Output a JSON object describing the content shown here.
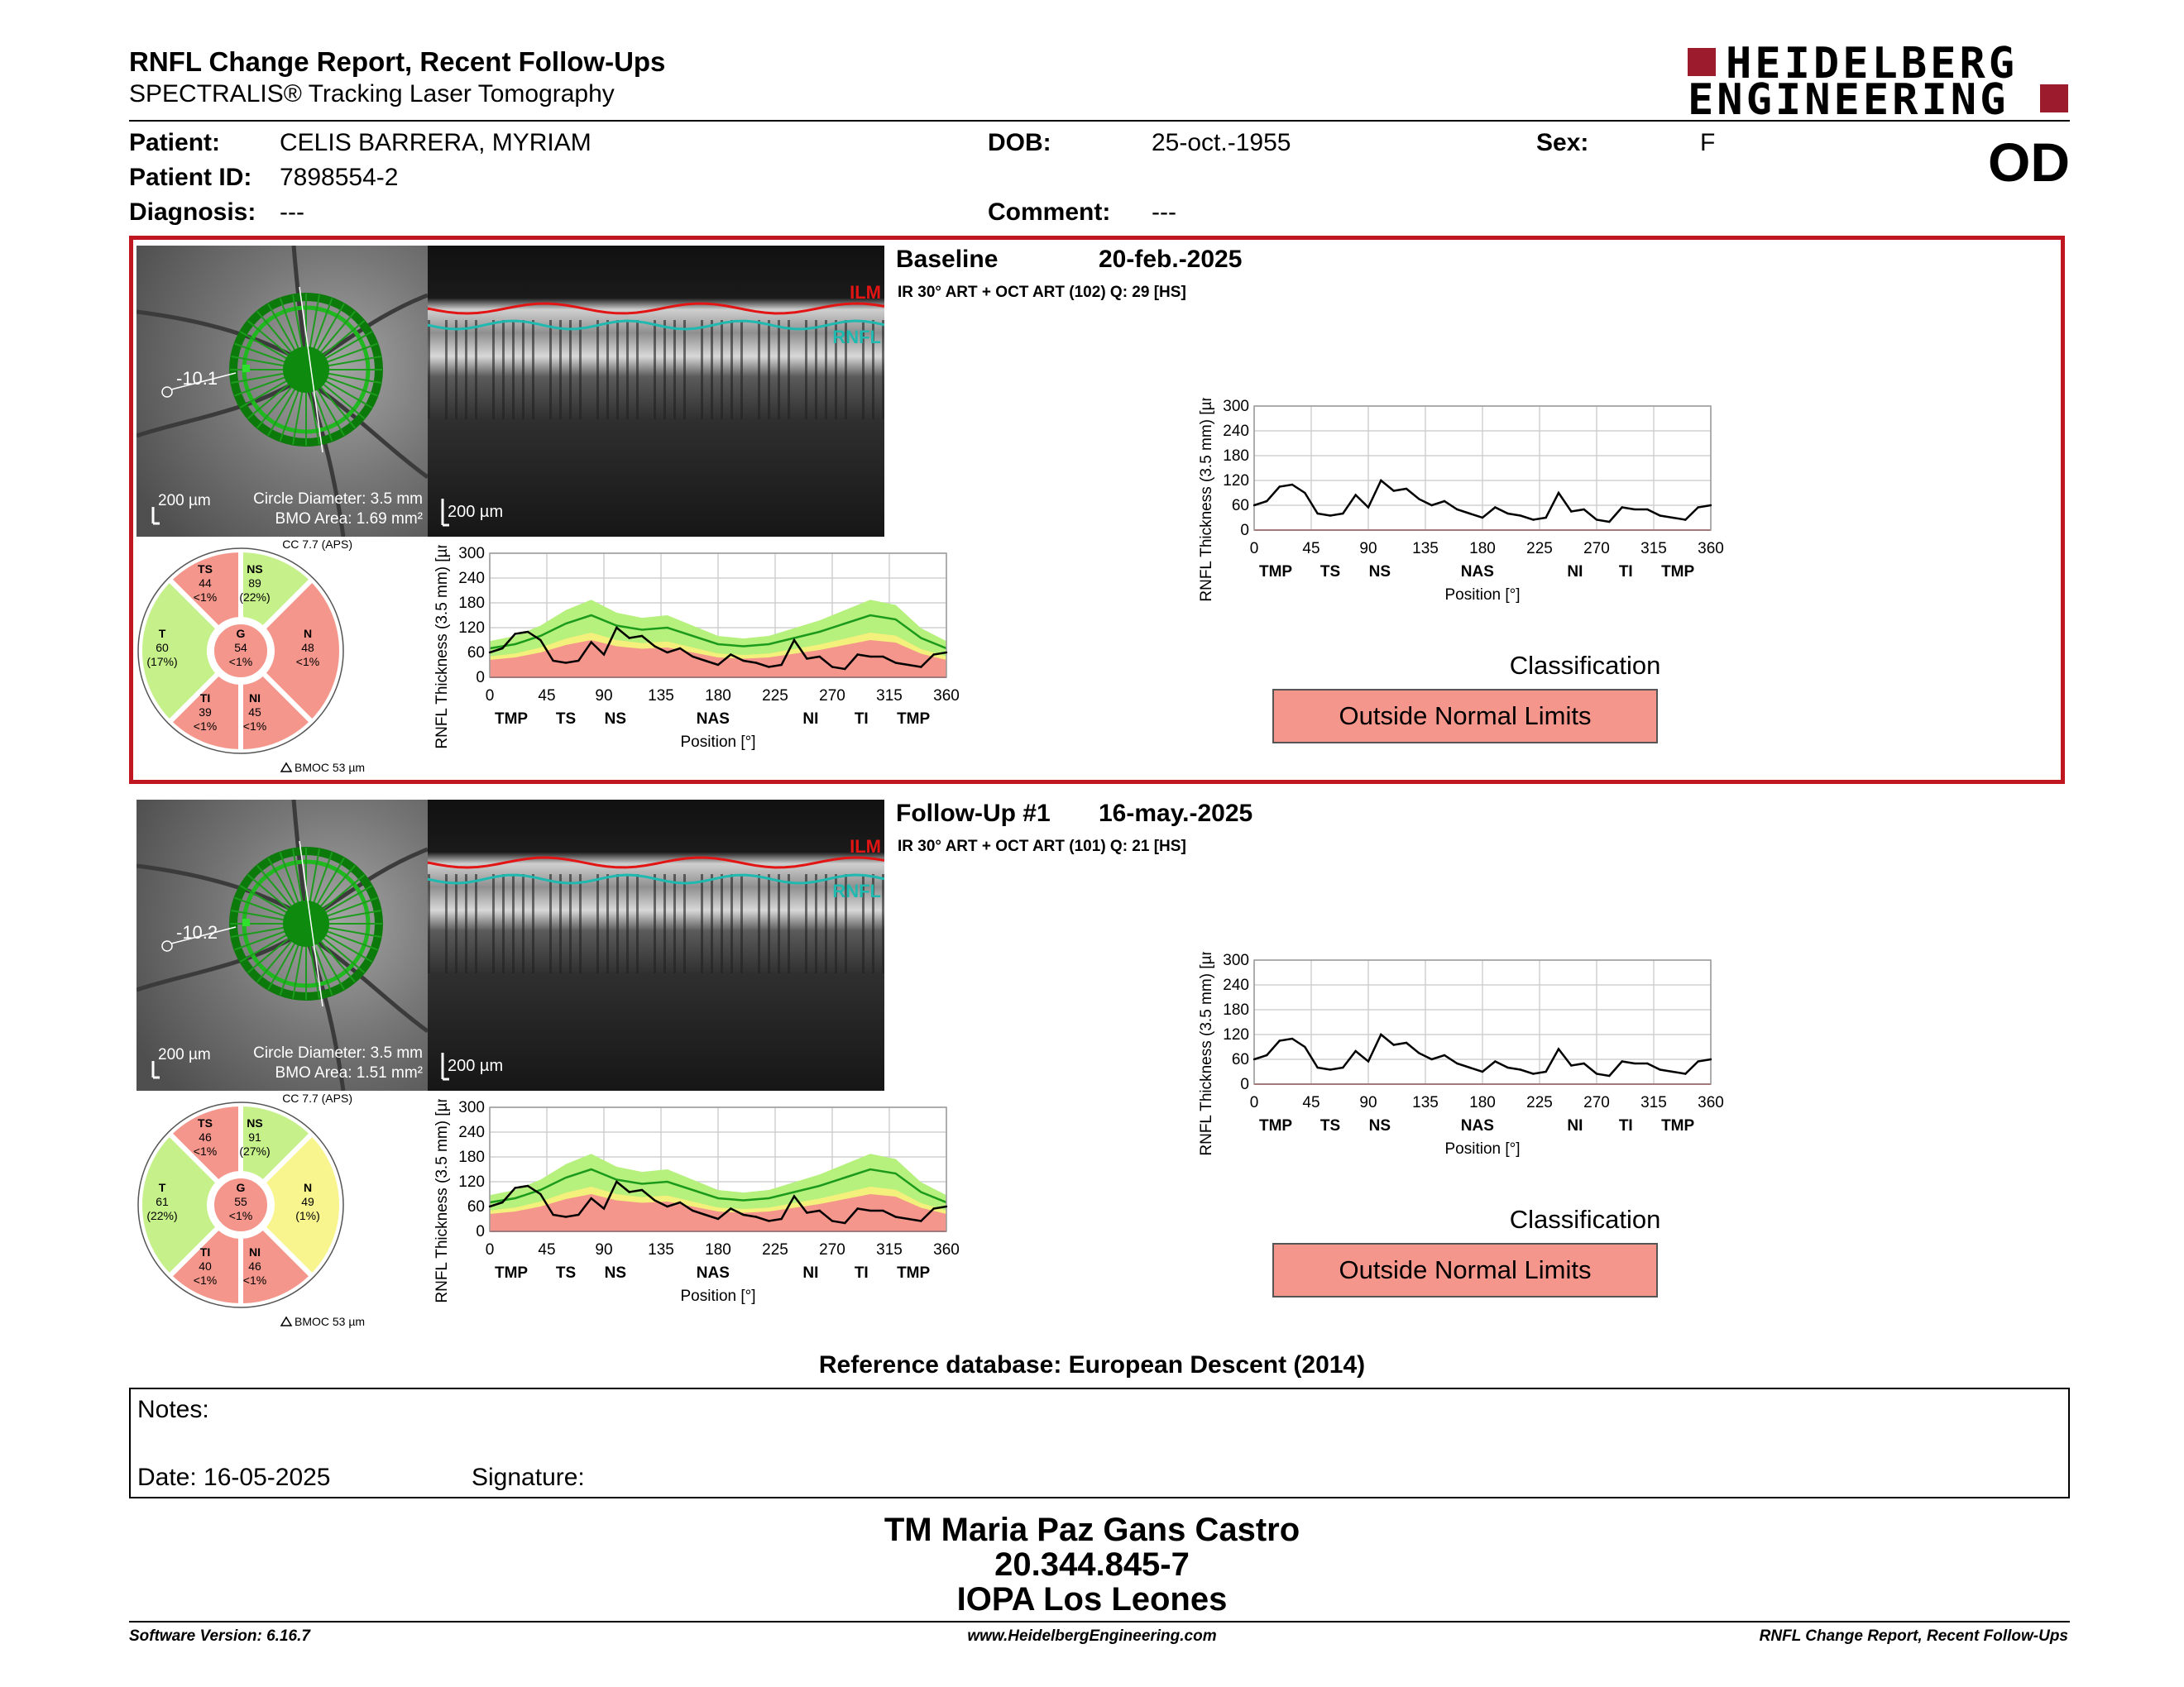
{
  "header": {
    "title": "RNFL Change Report, Recent Follow-Ups",
    "subtitle": "SPECTRALIS® Tracking Laser Tomography",
    "logo_line1": "HEIDELBERG",
    "logo_line2": "ENGINEERING"
  },
  "patient": {
    "patient_label": "Patient:",
    "patient_value": "CELIS BARRERA, MYRIAM",
    "id_label": "Patient ID:",
    "id_value": "7898554-2",
    "diagnosis_label": "Diagnosis:",
    "diagnosis_value": "---",
    "dob_label": "DOB:",
    "dob_value": "25-oct.-1955",
    "comment_label": "Comment:",
    "comment_value": "---",
    "sex_label": "Sex:",
    "sex_value": "F",
    "eye": "OD"
  },
  "exams": [
    {
      "heading": "Baseline",
      "date": "20-feb.-2025",
      "info": "IR 30° ART + OCT ART (102) Q: 29 [HS]",
      "fundus_value": "-10.1",
      "scale_fundus": "200 µm",
      "circle_diameter": "Circle Diameter: 3.5 mm",
      "bmo_area": "BMO Area: 1.69 mm²",
      "scale_bscan": "200 µm",
      "ilm": "ILM",
      "rnfl": "RNFL",
      "cc": "CC 7.7 (APS)",
      "bmo_note": "BMOC 53 µm",
      "sectors": {
        "TS": {
          "name": "TS",
          "value": "44",
          "pct": "<1%"
        },
        "NS": {
          "name": "NS",
          "value": "89",
          "pct": "(22%)"
        },
        "T": {
          "name": "T",
          "value": "60",
          "pct": "(17%)"
        },
        "G": {
          "name": "G",
          "value": "54",
          "pct": "<1%"
        },
        "N": {
          "name": "N",
          "value": "48",
          "pct": "<1%"
        },
        "TI": {
          "name": "TI",
          "value": "39",
          "pct": "<1%"
        },
        "NI": {
          "name": "NI",
          "value": "45",
          "pct": "<1%"
        }
      },
      "sector_colors": {
        "TS": "#f4968b",
        "NS": "#c6f08a",
        "T": "#c6f08a",
        "G": "#f4968b",
        "N": "#f4968b",
        "TI": "#f4968b",
        "NI": "#f4968b"
      },
      "classification_label": "Classification",
      "classification": "Outside Normal Limits"
    },
    {
      "heading": "Follow-Up #1",
      "date": "16-may.-2025",
      "info": "IR 30° ART + OCT ART (101) Q: 21 [HS]",
      "fundus_value": "-10.2",
      "scale_fundus": "200 µm",
      "circle_diameter": "Circle Diameter: 3.5 mm",
      "bmo_area": "BMO Area: 1.51 mm²",
      "scale_bscan": "200 µm",
      "ilm": "ILM",
      "rnfl": "RNFL",
      "cc": "CC 7.7 (APS)",
      "bmo_note": "BMOC 53 µm",
      "sectors": {
        "TS": {
          "name": "TS",
          "value": "46",
          "pct": "<1%"
        },
        "NS": {
          "name": "NS",
          "value": "91",
          "pct": "(27%)"
        },
        "T": {
          "name": "T",
          "value": "61",
          "pct": "(22%)"
        },
        "G": {
          "name": "G",
          "value": "55",
          "pct": "<1%"
        },
        "N": {
          "name": "N",
          "value": "49",
          "pct": "(1%)"
        },
        "TI": {
          "name": "TI",
          "value": "40",
          "pct": "<1%"
        },
        "NI": {
          "name": "NI",
          "value": "46",
          "pct": "<1%"
        }
      },
      "sector_colors": {
        "TS": "#f4968b",
        "NS": "#c6f08a",
        "T": "#c6f08a",
        "G": "#f4968b",
        "N": "#f8f58e",
        "TI": "#f4968b",
        "NI": "#f4968b"
      },
      "classification_label": "Classification",
      "classification": "Outside Normal Limits"
    }
  ],
  "chart_data": [
    {
      "type": "line",
      "title": "",
      "xlabel": "Position [°]",
      "ylabel": "RNFL Thickness (3.5 mm) [µm]",
      "xlim": [
        0,
        360
      ],
      "ylim": [
        0,
        300
      ],
      "xticks": [
        0,
        45,
        90,
        135,
        180,
        225,
        270,
        315,
        360
      ],
      "yticks": [
        0,
        60,
        120,
        180,
        240,
        300
      ],
      "sector_labels": [
        "TMP",
        "TS",
        "NS",
        "NAS",
        "NI",
        "TI",
        "TMP"
      ],
      "sector_positions": [
        17,
        60,
        99,
        176,
        253,
        293,
        334
      ],
      "series": [
        {
          "x": [
            0,
            10,
            20,
            30,
            40,
            50,
            60,
            70,
            80,
            90,
            100,
            110,
            120,
            130,
            140,
            150,
            160,
            170,
            180,
            190,
            200,
            210,
            220,
            230,
            240,
            250,
            260,
            270,
            280,
            290,
            300,
            310,
            320,
            330,
            340,
            350,
            360
          ],
          "values": [
            60,
            70,
            105,
            110,
            90,
            40,
            35,
            40,
            85,
            55,
            120,
            95,
            100,
            75,
            60,
            70,
            50,
            40,
            30,
            55,
            40,
            35,
            25,
            30,
            90,
            45,
            50,
            25,
            20,
            55,
            50,
            50,
            35,
            30,
            25,
            55,
            60
          ]
        }
      ]
    },
    {
      "type": "line",
      "title": "",
      "xlabel": "Position [°]",
      "ylabel": "RNFL Thickness (3.5 mm) [µm]",
      "xlim": [
        0,
        360
      ],
      "ylim": [
        0,
        300
      ],
      "xticks": [
        0,
        45,
        90,
        135,
        180,
        225,
        270,
        315,
        360
      ],
      "yticks": [
        0,
        60,
        120,
        180,
        240,
        300
      ],
      "sector_labels": [
        "TMP",
        "TS",
        "NS",
        "NAS",
        "NI",
        "TI",
        "TMP"
      ],
      "sector_positions": [
        17,
        60,
        99,
        176,
        253,
        293,
        334
      ],
      "series": [
        {
          "x": [
            0,
            10,
            20,
            30,
            40,
            50,
            60,
            70,
            80,
            90,
            100,
            110,
            120,
            130,
            140,
            150,
            160,
            170,
            180,
            190,
            200,
            210,
            220,
            230,
            240,
            250,
            260,
            270,
            280,
            290,
            300,
            310,
            320,
            330,
            340,
            350,
            360
          ],
          "values": [
            60,
            70,
            105,
            110,
            90,
            40,
            35,
            40,
            80,
            55,
            120,
            95,
            100,
            75,
            60,
            70,
            50,
            40,
            30,
            55,
            40,
            35,
            25,
            30,
            85,
            45,
            50,
            25,
            20,
            55,
            50,
            50,
            35,
            30,
            25,
            55,
            60
          ]
        }
      ]
    }
  ],
  "ref_db": "Reference database: European Descent (2014)",
  "notes": {
    "notes_label": "Notes:",
    "date_label": "Date: 16-05-2025",
    "signature_label": "Signature:"
  },
  "signature": {
    "name": "TM Maria Paz Gans Castro",
    "id": "20.344.845-7",
    "org": "IOPA Los Leones"
  },
  "footer": {
    "version": "Software Version: 6.16.7",
    "website": "www.HeidelbergEngineering.com",
    "report": "RNFL Change Report, Recent Follow-Ups"
  }
}
